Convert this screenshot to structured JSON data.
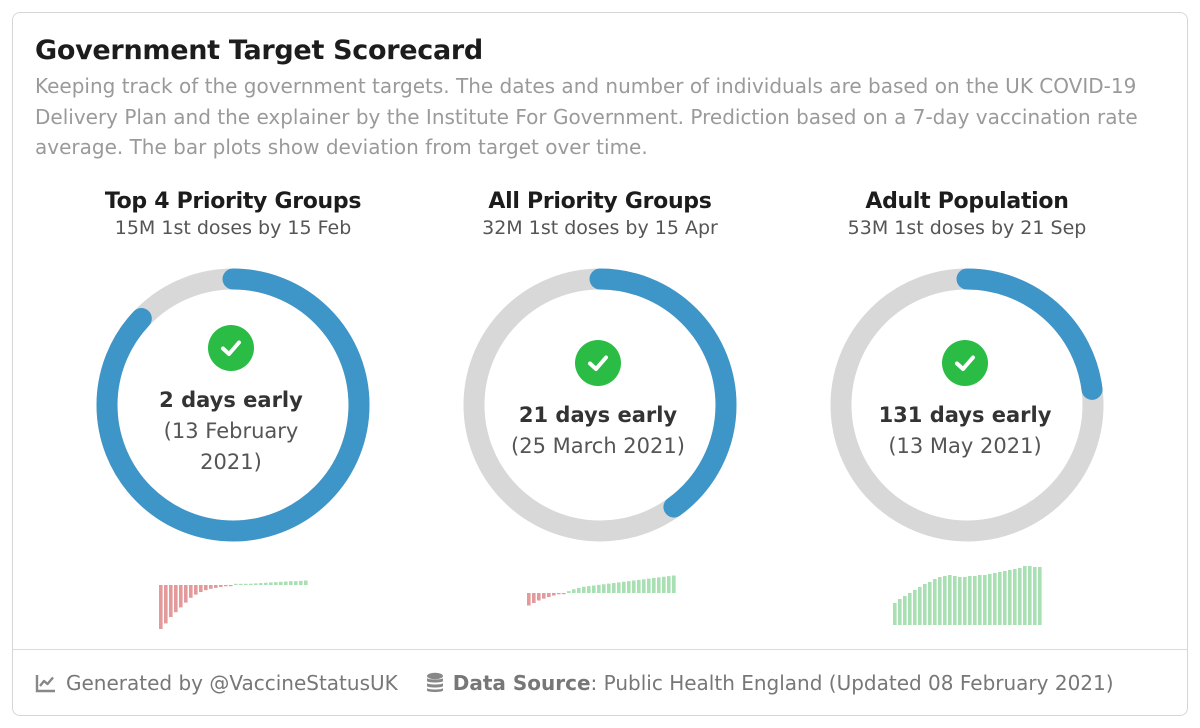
{
  "header": {
    "title": "Government Target Scorecard",
    "description": "Keeping track of the government targets. The dates and number of individuals are based on the UK COVID-19 Delivery Plan and the explainer by the Institute For Government. Prediction based on a 7-day vaccination rate average. The bar plots show deviation from target over time."
  },
  "targets": [
    {
      "title": "Top 4 Priority Groups",
      "subtitle": "15M 1st doses by 15 Feb",
      "progress": 0.87,
      "days_label": "2  days early",
      "date_label": "(13 February 2021)",
      "icon": "check-circle-icon",
      "deviation": [
        -14,
        -12,
        -10,
        -8.5,
        -7,
        -5.5,
        -4,
        -3,
        -2.2,
        -1.6,
        -1.2,
        -0.9,
        -0.6,
        -0.4,
        -0.2,
        0.1,
        0.2,
        0.3,
        0.4,
        0.5,
        0.6,
        0.7,
        0.8,
        0.9,
        1.0,
        1.1,
        1.2,
        1.2,
        1.3,
        1.4
      ]
    },
    {
      "title": "All Priority Groups",
      "subtitle": "32M 1st doses by 15 Apr",
      "progress": 0.4,
      "days_label": "21  days early",
      "date_label": "(25 March 2021)",
      "icon": "check-circle-icon",
      "deviation": [
        -10,
        -8,
        -6,
        -4.5,
        -3.2,
        -2,
        -1,
        -0.2,
        1.5,
        3,
        4,
        5,
        5.5,
        6,
        6.5,
        7,
        7.5,
        8,
        8.5,
        9,
        9.5,
        10,
        10.5,
        11,
        11.5,
        12,
        12.5,
        13,
        13.5,
        14
      ]
    },
    {
      "title": "Adult Population",
      "subtitle": "53M 1st doses by 21 Sep",
      "progress": 0.23,
      "days_label": "131  days early",
      "date_label": "(13 May 2021)",
      "icon": "check-circle-icon",
      "deviation": [
        22,
        26,
        29,
        32,
        35,
        38,
        41,
        43,
        46,
        48,
        49,
        50,
        49,
        48,
        48,
        49,
        49,
        50,
        50,
        51,
        52,
        53,
        54,
        55,
        56,
        57,
        59,
        59,
        58,
        58
      ]
    }
  ],
  "colors": {
    "ring_track": "#d8d8d8",
    "ring_fill": "#3d95c8",
    "check": "#2bbc45",
    "bar_negative": "#e29a9a",
    "bar_positive": "#a9e0b3"
  },
  "footer": {
    "generated_icon": "line-chart-icon",
    "generated_text": "Generated by @VaccineStatusUK",
    "source_icon": "database-icon",
    "source_label": "Data Source",
    "source_text": ": Public Health England (Updated 08 February 2021)"
  }
}
